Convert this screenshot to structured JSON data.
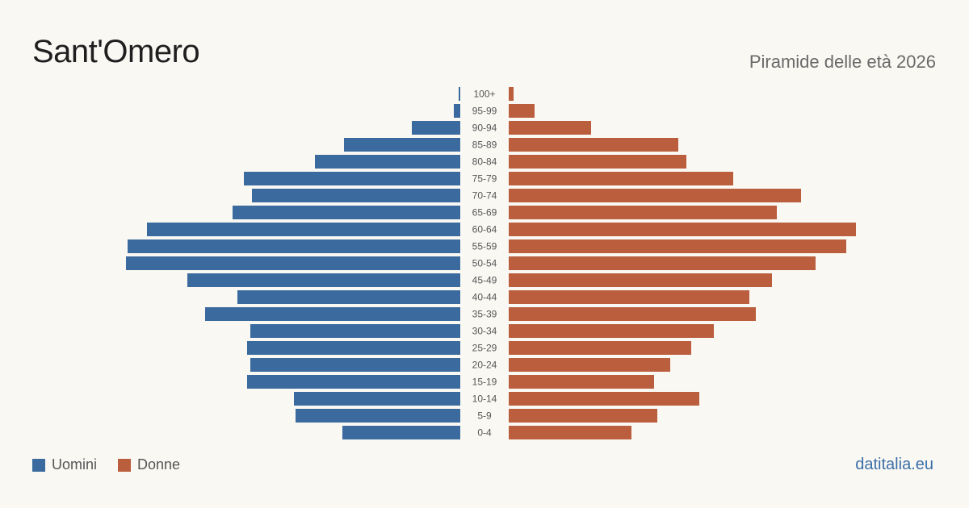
{
  "header": {
    "title": "Sant'Omero",
    "subtitle": "Piramide delle età 2026"
  },
  "legend": {
    "men_label": "Uomini",
    "women_label": "Donne"
  },
  "footer": {
    "source": "datitalia.eu"
  },
  "colors": {
    "men": "#3b6b9e",
    "women": "#bb5e3d",
    "background": "#faf8f3"
  },
  "chart_data": {
    "type": "bar",
    "orientation": "horizontal-pyramid",
    "categories": [
      "100+",
      "95-99",
      "90-94",
      "85-89",
      "80-84",
      "75-79",
      "70-74",
      "65-69",
      "60-64",
      "55-59",
      "50-54",
      "45-49",
      "40-44",
      "35-39",
      "30-34",
      "25-29",
      "20-24",
      "15-19",
      "10-14",
      "5-9",
      "0-4"
    ],
    "series": [
      {
        "name": "Uomini",
        "values": [
          1,
          4,
          30,
          72,
          90,
          134,
          129,
          141,
          194,
          206,
          207,
          169,
          138,
          158,
          130,
          132,
          130,
          132,
          103,
          102,
          73
        ]
      },
      {
        "name": "Donne",
        "values": [
          3,
          16,
          51,
          105,
          110,
          139,
          181,
          166,
          215,
          209,
          190,
          163,
          149,
          153,
          127,
          113,
          100,
          90,
          118,
          92,
          76
        ]
      }
    ],
    "xlim": [
      0,
      215
    ],
    "grid": false,
    "legend_position": "bottom-left"
  }
}
